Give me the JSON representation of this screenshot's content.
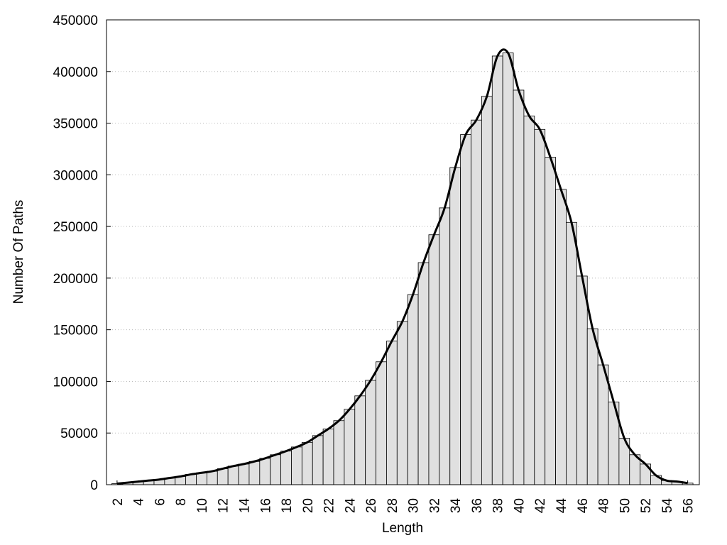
{
  "chart_data": {
    "type": "bar",
    "x_label": "Length",
    "y_label": "Number Of Paths",
    "x": [
      2,
      3,
      4,
      5,
      6,
      7,
      8,
      9,
      10,
      11,
      12,
      13,
      14,
      15,
      16,
      17,
      18,
      19,
      20,
      21,
      22,
      23,
      24,
      25,
      26,
      27,
      28,
      29,
      30,
      31,
      32,
      33,
      34,
      35,
      36,
      37,
      38,
      39,
      40,
      41,
      42,
      43,
      44,
      45,
      46,
      47,
      48,
      49,
      50,
      51,
      52,
      53,
      54,
      55,
      56
    ],
    "values": [
      1000,
      2000,
      3000,
      4000,
      5000,
      6500,
      8000,
      10000,
      11500,
      13000,
      15500,
      18000,
      20000,
      22500,
      25500,
      29000,
      32500,
      36500,
      41000,
      47500,
      54000,
      62000,
      73000,
      86000,
      101000,
      119000,
      139000,
      158000,
      184000,
      215000,
      242000,
      268000,
      307000,
      339000,
      353000,
      376000,
      415000,
      418000,
      382000,
      357000,
      344000,
      317000,
      286000,
      254000,
      202000,
      151000,
      116000,
      80000,
      45000,
      29000,
      20000,
      9000,
      4000,
      3000,
      1500
    ],
    "color": "#e0e0e0",
    "smooth_line": true,
    "line_color": "#000000",
    "xlim": [
      1,
      57.1
    ],
    "xticks": [
      2,
      4,
      6,
      8,
      10,
      12,
      14,
      16,
      18,
      20,
      22,
      24,
      26,
      28,
      30,
      32,
      34,
      36,
      38,
      40,
      42,
      44,
      46,
      48,
      50,
      52,
      54,
      56
    ],
    "ylim": [
      0,
      450000
    ],
    "yticks": [
      0,
      50000,
      100000,
      150000,
      200000,
      250000,
      300000,
      350000,
      400000,
      450000
    ],
    "grid": true
  }
}
